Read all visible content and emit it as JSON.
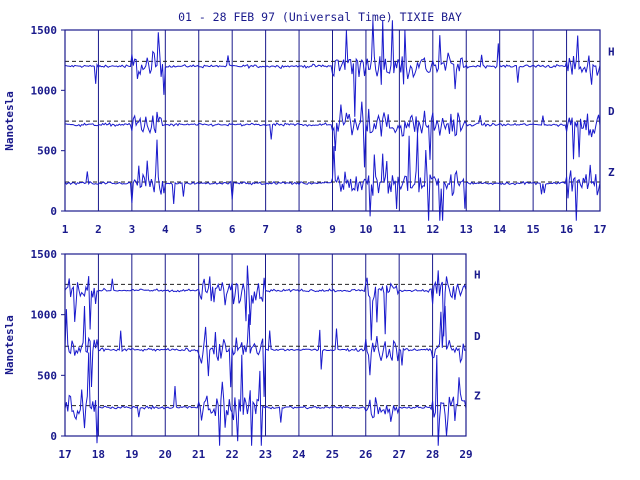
{
  "page": {
    "title": "01 - 28 FEB 97 (Universal Time) TIXIE BAY"
  },
  "colors": {
    "ink": "#1a1a8c",
    "trace": "#1a1acc",
    "background": "#ffffff"
  },
  "chart_data": [
    {
      "type": "line",
      "title": "01 - 28 FEB 97 (Universal Time) TIXIE BAY",
      "ylabel": "Nanotesla",
      "xlabel": "",
      "xlim": [
        1,
        17
      ],
      "ylim": [
        0,
        1500
      ],
      "x_tick_labels": [
        "1",
        "2",
        "3",
        "4",
        "5",
        "6",
        "7",
        "8",
        "9",
        "10",
        "11",
        "12",
        "13",
        "14",
        "15",
        "16",
        "17"
      ],
      "y_tick_labels": [
        "0",
        "500",
        "1000",
        "1500"
      ],
      "grid": "vertical day lines",
      "series": [
        {
          "name": "H",
          "baseline": 1240,
          "level": 1200
        },
        {
          "name": "D",
          "baseline": 745,
          "level": 715
        },
        {
          "name": "Z",
          "baseline": 240,
          "level": 230
        }
      ],
      "disturbed_days": [
        3,
        9,
        10,
        11,
        12,
        16
      ]
    },
    {
      "type": "line",
      "ylabel": "Nanotesla",
      "xlabel": "",
      "xlim": [
        17,
        29
      ],
      "ylim": [
        0,
        1500
      ],
      "x_tick_labels": [
        "17",
        "18",
        "19",
        "20",
        "21",
        "22",
        "23",
        "24",
        "25",
        "26",
        "27",
        "28",
        "29"
      ],
      "y_tick_labels": [
        "0",
        "500",
        "1000",
        "1500"
      ],
      "grid": "vertical day lines",
      "series": [
        {
          "name": "H",
          "baseline": 1250,
          "level": 1200
        },
        {
          "name": "D",
          "baseline": 740,
          "level": 710
        },
        {
          "name": "Z",
          "baseline": 250,
          "level": 235
        }
      ],
      "disturbed_days": [
        17,
        21,
        22,
        26,
        28
      ]
    }
  ]
}
